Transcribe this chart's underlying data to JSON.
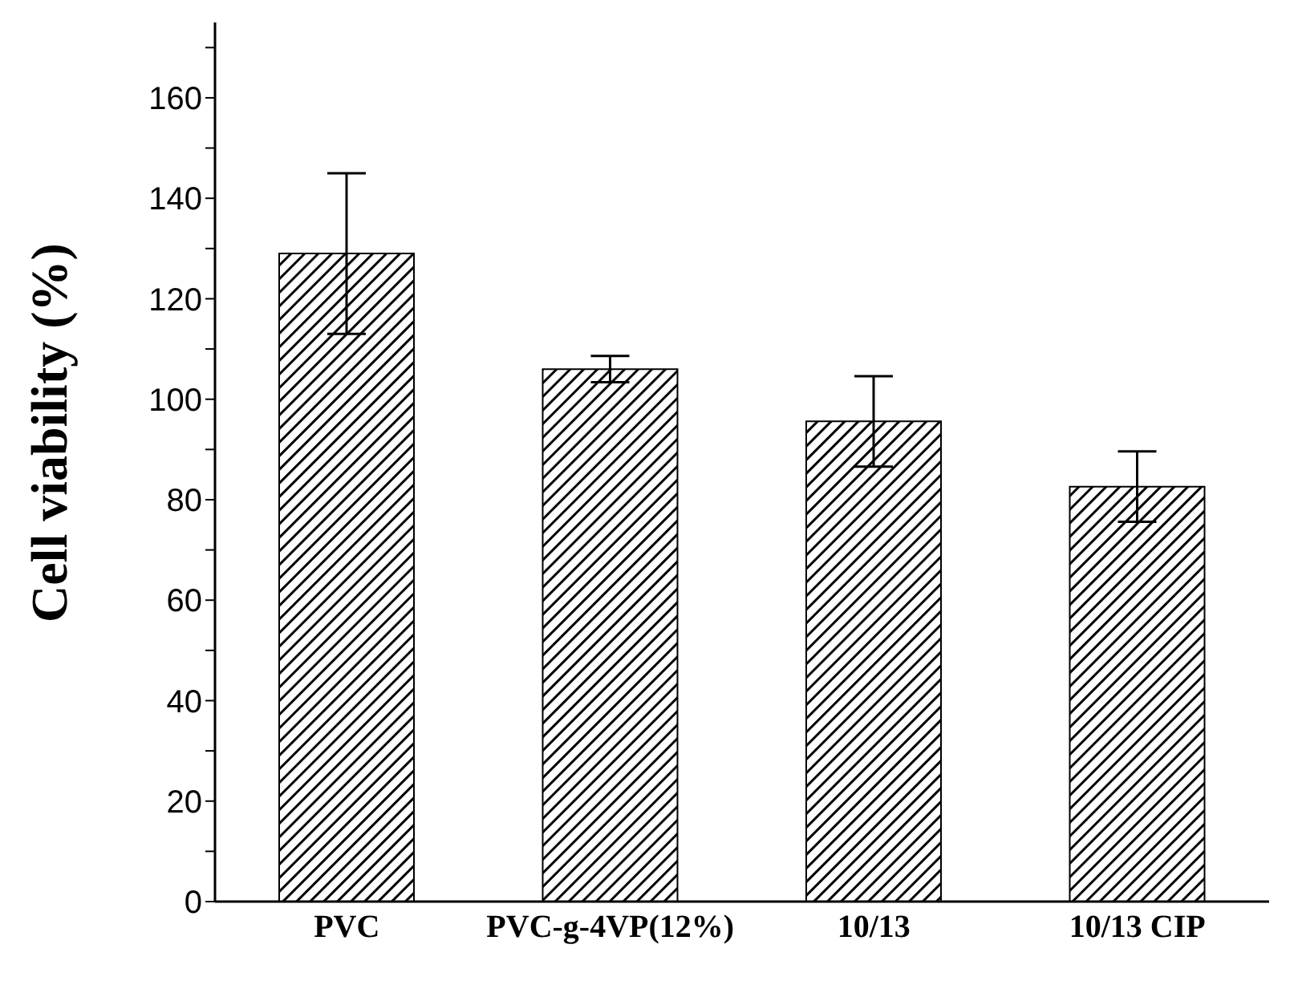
{
  "chart_data": {
    "type": "bar",
    "ylabel": "Cell viability (%)",
    "categories": [
      "PVC",
      "PVC-g-4VP(12%)",
      "10/13",
      "10/13 CIP"
    ],
    "values": [
      129,
      106,
      95.6,
      82.6
    ],
    "errors": [
      16,
      2.6,
      9,
      7
    ],
    "color": "#000000",
    "ylim": [
      0,
      175
    ],
    "yticks": [
      0,
      {
        "value": 10,
        "label": null
      },
      20,
      {
        "value": 30,
        "label": null
      },
      40,
      {
        "value": 50,
        "label": null
      },
      60,
      {
        "value": 70,
        "label": null
      },
      80,
      {
        "value": 90,
        "label": null
      },
      100,
      {
        "value": 110,
        "label": null
      },
      120,
      {
        "value": 130,
        "label": null
      },
      140,
      {
        "value": 150,
        "label": null
      },
      160,
      {
        "value": 170,
        "label": null
      }
    ],
    "grid": false,
    "legend": false
  }
}
